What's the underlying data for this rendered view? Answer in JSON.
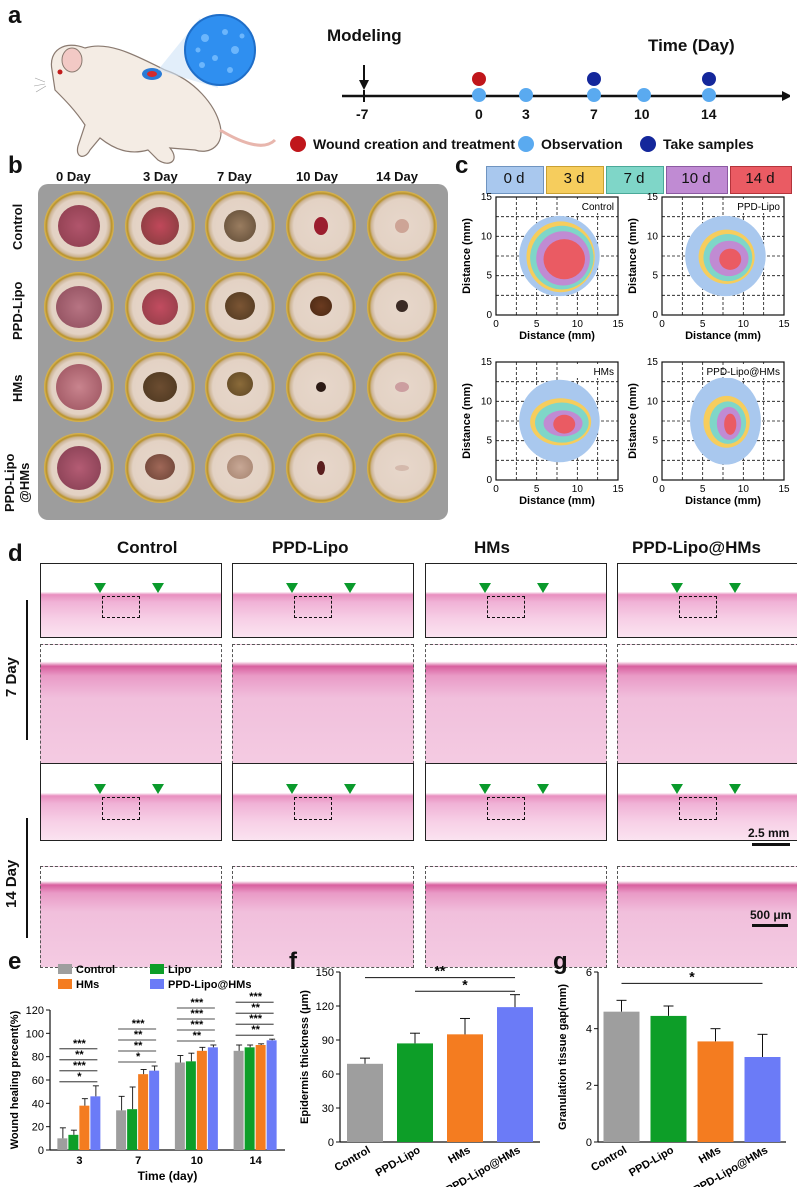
{
  "panel_labels": {
    "a": "a",
    "b": "b",
    "c": "c",
    "d": "d",
    "e": "e",
    "f": "f",
    "g": "g"
  },
  "panel_a": {
    "modeling_label": "Modeling",
    "time_label": "Time (Day)",
    "timeline_ticks": [
      "-7",
      "0",
      "3",
      "7",
      "10",
      "14"
    ],
    "legend": [
      {
        "label": "Wound creation and treatment",
        "color": "#c0161b"
      },
      {
        "label": "Observation",
        "color": "#5aaaf0"
      },
      {
        "label": "Take samples",
        "color": "#14279b"
      }
    ],
    "colors": {
      "wound": "#c0161b",
      "observation": "#5aaaf0",
      "samples": "#14279b"
    }
  },
  "panel_b": {
    "days": [
      "0 Day",
      "3 Day",
      "7 Day",
      "10 Day",
      "14 Day"
    ],
    "groups": [
      "Control",
      "PPD-Lipo",
      "HMs",
      "PPD-Lipo\n@HMs"
    ]
  },
  "panel_c": {
    "legend": [
      {
        "label": "0 d",
        "color": "#a9c8ee"
      },
      {
        "label": "3 d",
        "color": "#f6cd5d"
      },
      {
        "label": "7 d",
        "color": "#7fd6c8"
      },
      {
        "label": "10 d",
        "color": "#c08bd3"
      },
      {
        "label": "14 d",
        "color": "#ea5b63"
      }
    ],
    "plots": [
      {
        "title": "Control"
      },
      {
        "title": "PPD-Lipo"
      },
      {
        "title": "HMs"
      },
      {
        "title": "PPD-Lipo@HMs"
      }
    ],
    "x_label": "Distance (mm)",
    "y_label": "Distance (mm)",
    "ticks": [
      "0",
      "5",
      "10",
      "15"
    ]
  },
  "panel_d": {
    "groups": [
      "Control",
      "PPD-Lipo",
      "HMs",
      "PPD-Lipo@HMs"
    ],
    "rows": [
      "7 Day",
      "14 Day"
    ],
    "scale_top": "2.5 mm",
    "scale_zoom": "500 μm"
  },
  "chart_data": [
    {
      "type": "bar",
      "panel": "e",
      "categories": [
        "3",
        "7",
        "10",
        "14"
      ],
      "xlabel": "Time (day)",
      "ylabel": "Wound healing precent(%)",
      "ylim": [
        0,
        120
      ],
      "yticks": [
        0,
        20,
        40,
        60,
        80,
        100,
        120
      ],
      "series": [
        {
          "name": "Control",
          "color": "#9e9e9e",
          "values": [
            10,
            34,
            75,
            85
          ],
          "err": [
            9,
            12,
            6,
            5
          ]
        },
        {
          "name": "Lipo",
          "color": "#0d9e28",
          "values": [
            13,
            35,
            76,
            88
          ],
          "err": [
            4,
            19,
            7,
            2
          ]
        },
        {
          "name": "HMs",
          "color": "#f47c20",
          "values": [
            38,
            65,
            85,
            90
          ],
          "err": [
            6,
            4,
            3,
            1
          ]
        },
        {
          "name": "PPD-Lipo@HMs",
          "color": "#6b7bf7",
          "values": [
            46,
            68,
            88,
            94
          ],
          "err": [
            9,
            4,
            2,
            1
          ]
        }
      ],
      "significance": [
        {
          "group": "3",
          "labels": [
            "***",
            "**",
            "***",
            "*"
          ]
        },
        {
          "group": "7",
          "labels": [
            "***",
            "**",
            "**",
            "*"
          ]
        },
        {
          "group": "10",
          "labels": [
            "***",
            "***",
            "***",
            "**"
          ]
        },
        {
          "group": "14",
          "labels": [
            "***",
            "**",
            "***",
            "**"
          ]
        }
      ]
    },
    {
      "type": "bar",
      "panel": "f",
      "categories": [
        "Control",
        "PPD-Lipo",
        "HMs",
        "PPD-Lipo@HMs"
      ],
      "values": [
        69,
        87,
        95,
        119
      ],
      "err": [
        5,
        9,
        14,
        11
      ],
      "colors": [
        "#9e9e9e",
        "#0d9e28",
        "#f47c20",
        "#6b7bf7"
      ],
      "xlabel": "",
      "ylabel": "Epidermis thickness (μm)",
      "ylim": [
        0,
        150
      ],
      "yticks": [
        0,
        30,
        60,
        90,
        120,
        150
      ],
      "significance": [
        "**",
        "*"
      ]
    },
    {
      "type": "bar",
      "panel": "g",
      "categories": [
        "Control",
        "PPD-Lipo",
        "HMs",
        "PPD-Lipo@HMs"
      ],
      "values": [
        4.6,
        4.45,
        3.55,
        3.0
      ],
      "err": [
        0.4,
        0.35,
        0.45,
        0.8
      ],
      "colors": [
        "#9e9e9e",
        "#0d9e28",
        "#f47c20",
        "#6b7bf7"
      ],
      "xlabel": "",
      "ylabel": "Granulation tissue gap(mm)",
      "ylim": [
        0,
        6
      ],
      "yticks": [
        0,
        2,
        4,
        6
      ],
      "significance": [
        "*"
      ]
    }
  ]
}
